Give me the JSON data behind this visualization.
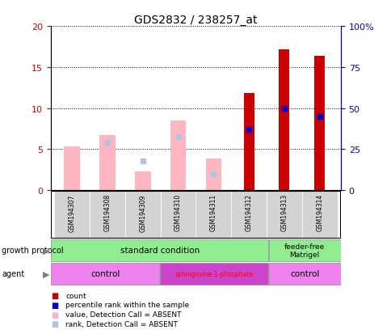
{
  "title": "GDS2832 / 238257_at",
  "samples": [
    "GSM194307",
    "GSM194308",
    "GSM194309",
    "GSM194310",
    "GSM194311",
    "GSM194312",
    "GSM194313",
    "GSM194314"
  ],
  "count_values": [
    null,
    null,
    null,
    null,
    null,
    11.8,
    17.2,
    16.4
  ],
  "percentile_values_pct": [
    null,
    null,
    null,
    null,
    null,
    37.0,
    50.0,
    45.0
  ],
  "absent_value_values": [
    5.3,
    6.7,
    2.3,
    8.5,
    3.8,
    null,
    null,
    null
  ],
  "absent_rank_values_pct": [
    null,
    29.0,
    17.5,
    32.5,
    10.0,
    null,
    null,
    null
  ],
  "ylim_left": [
    0,
    20
  ],
  "ylim_right": [
    0,
    100
  ],
  "yticks_left": [
    0,
    5,
    10,
    15,
    20
  ],
  "ytick_labels_left": [
    "0",
    "5",
    "10",
    "15",
    "20"
  ],
  "yticks_right": [
    0,
    25,
    50,
    75,
    100
  ],
  "ytick_labels_right": [
    "0",
    "25",
    "50",
    "75",
    "100%"
  ],
  "color_count": "#cc0000",
  "color_percentile": "#0000cc",
  "color_absent_value": "#ffb6c1",
  "color_absent_rank": "#b0c4de",
  "sample_bg": "#d3d3d3",
  "left_axis_color": "#cc0000",
  "right_axis_color": "#0000cc",
  "gp_color_std": "#90ee90",
  "agent_control_color": "#ee82ee",
  "agent_sphingo_color": "#cc44cc"
}
